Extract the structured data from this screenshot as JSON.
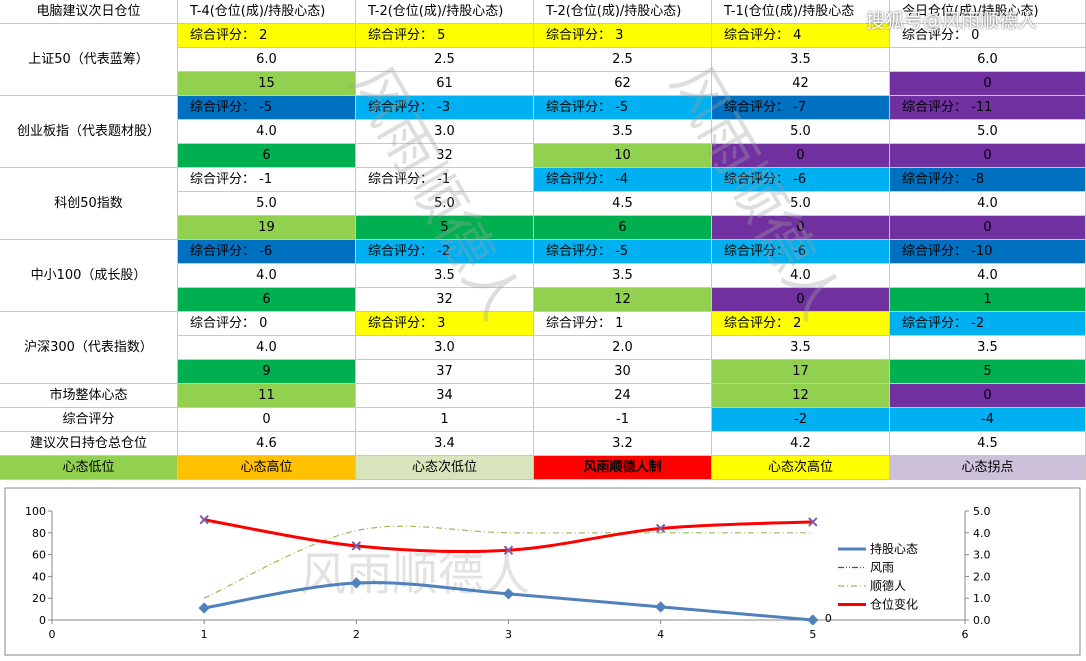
{
  "table": {
    "header": [
      "电脑建议次日仓位",
      "T-4(仓位(成)/持股心态)",
      "T-2(仓位(成)/持股心态)",
      "T-2(仓位(成)/持股心态)",
      "T-1(仓位(成)/持股心态",
      "今日仓位(成)/持股心态)"
    ],
    "groups": [
      {
        "name": "上证50（代表蓝筹）",
        "rows": [
          [
            {
              "t": "综合评分： 2",
              "c": "#ffff00"
            },
            {
              "t": "综合评分： 5",
              "c": "#ffff00"
            },
            {
              "t": "综合评分： 3",
              "c": "#ffff00"
            },
            {
              "t": "综合评分： 4",
              "c": "#ffff00"
            },
            {
              "t": "综合评分： 0",
              "c": "#ffffff"
            }
          ],
          [
            {
              "t": "6.0",
              "c": "#ffffff"
            },
            {
              "t": "2.5",
              "c": "#ffffff"
            },
            {
              "t": "2.5",
              "c": "#ffffff"
            },
            {
              "t": "3.5",
              "c": "#ffffff"
            },
            {
              "t": "6.0",
              "c": "#ffffff"
            }
          ],
          [
            {
              "t": "15",
              "c": "#92d050"
            },
            {
              "t": "61",
              "c": "#ffffff"
            },
            {
              "t": "62",
              "c": "#ffffff"
            },
            {
              "t": "42",
              "c": "#ffffff"
            },
            {
              "t": "0",
              "c": "#7030a0"
            }
          ]
        ]
      },
      {
        "name": "创业板指（代表题材股）",
        "rows": [
          [
            {
              "t": "综合评分： -5",
              "c": "#0070c0"
            },
            {
              "t": "综合评分： -3",
              "c": "#00b0f0"
            },
            {
              "t": "综合评分： -5",
              "c": "#00b0f0"
            },
            {
              "t": "综合评分： -7",
              "c": "#0070c0"
            },
            {
              "t": "综合评分： -11",
              "c": "#7030a0"
            }
          ],
          [
            {
              "t": "4.0",
              "c": "#ffffff"
            },
            {
              "t": "3.0",
              "c": "#ffffff"
            },
            {
              "t": "3.5",
              "c": "#ffffff"
            },
            {
              "t": "5.0",
              "c": "#ffffff"
            },
            {
              "t": "5.0",
              "c": "#ffffff"
            }
          ],
          [
            {
              "t": "6",
              "c": "#00b050"
            },
            {
              "t": "32",
              "c": "#ffffff"
            },
            {
              "t": "10",
              "c": "#92d050"
            },
            {
              "t": "0",
              "c": "#7030a0"
            },
            {
              "t": "0",
              "c": "#7030a0"
            }
          ]
        ]
      },
      {
        "name": "科创50指数",
        "rows": [
          [
            {
              "t": "综合评分： -1",
              "c": "#ffffff"
            },
            {
              "t": "综合评分： -1",
              "c": "#ffffff"
            },
            {
              "t": "综合评分： -4",
              "c": "#00b0f0"
            },
            {
              "t": "综合评分： -6",
              "c": "#00b0f0"
            },
            {
              "t": "综合评分： -8",
              "c": "#0070c0"
            }
          ],
          [
            {
              "t": "5.0",
              "c": "#ffffff"
            },
            {
              "t": "5.0",
              "c": "#ffffff"
            },
            {
              "t": "4.5",
              "c": "#ffffff"
            },
            {
              "t": "5.0",
              "c": "#ffffff"
            },
            {
              "t": "4.0",
              "c": "#ffffff"
            }
          ],
          [
            {
              "t": "19",
              "c": "#92d050"
            },
            {
              "t": "5",
              "c": "#00b050"
            },
            {
              "t": "6",
              "c": "#00b050"
            },
            {
              "t": "0",
              "c": "#7030a0"
            },
            {
              "t": "0",
              "c": "#7030a0"
            }
          ]
        ]
      },
      {
        "name": "中小100（成长股）",
        "rows": [
          [
            {
              "t": "综合评分： -6",
              "c": "#0070c0"
            },
            {
              "t": "综合评分： -2",
              "c": "#00b0f0"
            },
            {
              "t": "综合评分： -5",
              "c": "#00b0f0"
            },
            {
              "t": "综合评分： -6",
              "c": "#00b0f0"
            },
            {
              "t": "综合评分： -10",
              "c": "#0070c0"
            }
          ],
          [
            {
              "t": "4.0",
              "c": "#ffffff"
            },
            {
              "t": "3.5",
              "c": "#ffffff"
            },
            {
              "t": "3.5",
              "c": "#ffffff"
            },
            {
              "t": "4.0",
              "c": "#ffffff"
            },
            {
              "t": "4.0",
              "c": "#ffffff"
            }
          ],
          [
            {
              "t": "6",
              "c": "#00b050"
            },
            {
              "t": "32",
              "c": "#ffffff"
            },
            {
              "t": "12",
              "c": "#92d050"
            },
            {
              "t": "0",
              "c": "#7030a0"
            },
            {
              "t": "1",
              "c": "#00b050"
            }
          ]
        ]
      },
      {
        "name": "沪深300（代表指数）",
        "rows": [
          [
            {
              "t": "综合评分： 0",
              "c": "#ffffff"
            },
            {
              "t": "综合评分： 3",
              "c": "#ffff00"
            },
            {
              "t": "综合评分： 1",
              "c": "#ffffff"
            },
            {
              "t": "综合评分： 2",
              "c": "#ffff00"
            },
            {
              "t": "综合评分： -2",
              "c": "#00b0f0"
            }
          ],
          [
            {
              "t": "4.0",
              "c": "#ffffff"
            },
            {
              "t": "3.0",
              "c": "#ffffff"
            },
            {
              "t": "2.0",
              "c": "#ffffff"
            },
            {
              "t": "3.5",
              "c": "#ffffff"
            },
            {
              "t": "3.5",
              "c": "#ffffff"
            }
          ],
          [
            {
              "t": "9",
              "c": "#00b050"
            },
            {
              "t": "37",
              "c": "#ffffff"
            },
            {
              "t": "30",
              "c": "#ffffff"
            },
            {
              "t": "17",
              "c": "#92d050"
            },
            {
              "t": "5",
              "c": "#00b050"
            }
          ]
        ]
      }
    ],
    "summary": [
      {
        "label": "市场整体心态",
        "cells": [
          {
            "t": "11",
            "c": "#92d050"
          },
          {
            "t": "34",
            "c": "#ffffff"
          },
          {
            "t": "24",
            "c": "#ffffff"
          },
          {
            "t": "12",
            "c": "#92d050"
          },
          {
            "t": "0",
            "c": "#7030a0"
          }
        ]
      },
      {
        "label": "综合评分",
        "cells": [
          {
            "t": "0",
            "c": "#ffffff"
          },
          {
            "t": "1",
            "c": "#ffffff"
          },
          {
            "t": "-1",
            "c": "#ffffff"
          },
          {
            "t": "-2",
            "c": "#00b0f0"
          },
          {
            "t": "-4",
            "c": "#00b0f0"
          }
        ]
      },
      {
        "label": "建议次日持仓总仓位",
        "cells": [
          {
            "t": "4.6",
            "c": "#ffffff"
          },
          {
            "t": "3.4",
            "c": "#ffffff"
          },
          {
            "t": "3.2",
            "c": "#ffffff"
          },
          {
            "t": "4.2",
            "c": "#ffffff"
          },
          {
            "t": "4.5",
            "c": "#ffffff"
          }
        ]
      }
    ],
    "legend": [
      {
        "t": "心态低位",
        "c": "#92d050"
      },
      {
        "t": "心态高位",
        "c": "#ffc000"
      },
      {
        "t": "心态次低位",
        "c": "#d8e4bc"
      },
      {
        "t": "风雨顺德人制",
        "c": "#ff0000"
      },
      {
        "t": "心态次高位",
        "c": "#ffff00"
      },
      {
        "t": "心态拐点",
        "c": "#ccc0da"
      }
    ]
  },
  "watermark": "风雨顺德人",
  "source_watermark": "搜狐号@风雨顺德人",
  "chart_data": {
    "type": "line",
    "x": [
      1,
      2,
      3,
      4,
      5
    ],
    "xlim": [
      0,
      6
    ],
    "xticks": [
      0,
      1,
      2,
      3,
      4,
      5,
      6
    ],
    "ylim": [
      0,
      100
    ],
    "yticks": [
      0,
      20,
      40,
      60,
      80,
      100
    ],
    "y2lim": [
      0,
      5
    ],
    "y2ticks": [
      {
        "value": 0,
        "label": "0.0"
      },
      {
        "value": 1,
        "label": "1.0"
      },
      {
        "value": 2,
        "label": "2.0"
      },
      {
        "value": 3,
        "label": "3.0"
      },
      {
        "value": 4,
        "label": "4.0"
      },
      {
        "value": 5,
        "label": "5.0"
      }
    ],
    "series": [
      {
        "name": "持股心态",
        "color": "#4f81bd",
        "values": [
          11,
          34,
          24,
          12,
          0
        ],
        "value_labels": [
          null,
          null,
          null,
          null,
          "0"
        ]
      },
      {
        "name": "风雨",
        "color": "#7030a0",
        "axis": "y2",
        "values": [
          4.6,
          3.4,
          3.2,
          4.2,
          4.5
        ]
      },
      {
        "name": "顺德人",
        "color": "#9bbb59",
        "axis": "y2",
        "values": [
          1.0,
          4.1,
          4.0,
          4.0,
          4.0
        ]
      },
      {
        "name": "仓位变化",
        "color": "#ff0000",
        "axis": "y2",
        "values": [
          4.6,
          3.4,
          3.2,
          4.2,
          4.5
        ]
      }
    ]
  }
}
